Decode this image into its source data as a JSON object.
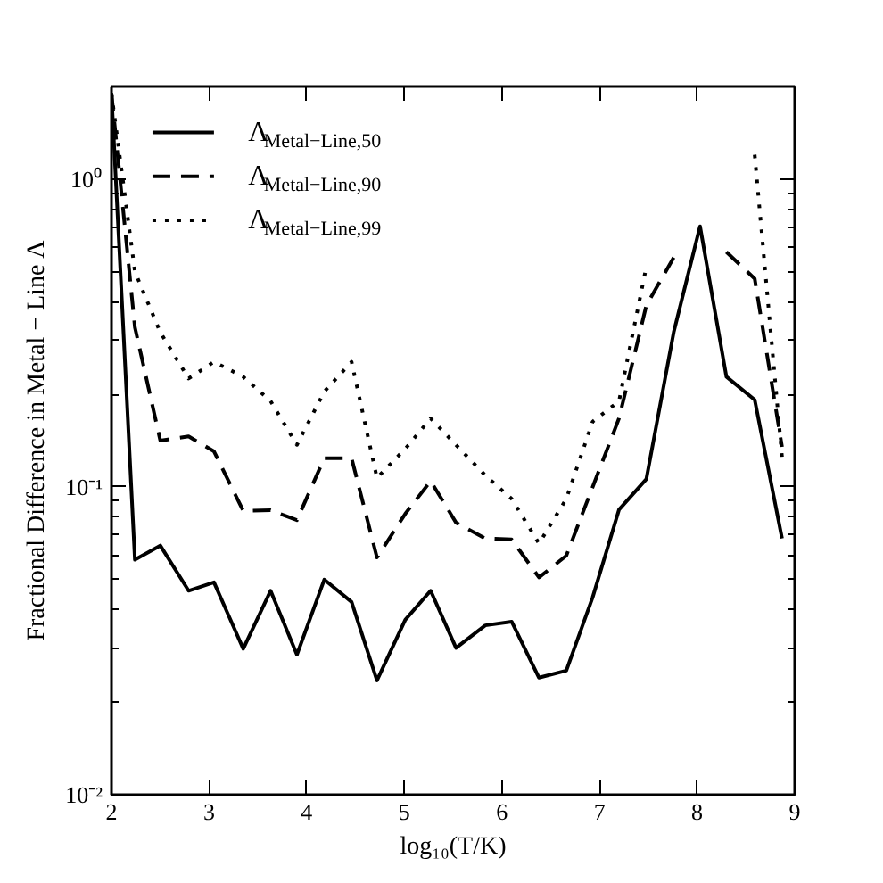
{
  "chart_data": {
    "type": "line",
    "xlabel": "log₁₀(T/K)",
    "ylabel": "Fractional Difference in Metal − Line Λ",
    "log": "y",
    "xlim": [
      2,
      9
    ],
    "xticks": [
      2,
      3,
      4,
      5,
      6,
      7,
      8,
      9
    ],
    "ylim": [
      0.01,
      2
    ],
    "yticks": [
      {
        "value": 0.01,
        "label": "10⁻²"
      },
      {
        "value": 0.1,
        "label": "10⁻¹"
      },
      {
        "value": 1,
        "label": "10⁰"
      }
    ],
    "grid": false,
    "legend": "top left",
    "x": [
      2.0,
      2.24,
      2.5,
      2.79,
      3.05,
      3.35,
      3.63,
      3.9,
      4.18,
      4.46,
      4.72,
      5.01,
      5.27,
      5.53,
      5.83,
      6.1,
      6.38,
      6.66,
      6.93,
      7.2,
      7.48,
      7.76,
      8.03,
      8.3,
      8.59,
      8.87
    ],
    "series": [
      {
        "name": "Λ$_{Metal−Line,50}$",
        "color": "#000000",
        "line_style": "solid",
        "values": [
          1.9,
          0.058,
          0.0645,
          0.046,
          0.049,
          0.0298,
          0.046,
          0.0285,
          0.05,
          0.0423,
          0.0235,
          0.037,
          0.046,
          0.03,
          0.0355,
          0.0365,
          0.024,
          0.0253,
          0.0438,
          0.0844,
          0.106,
          0.318,
          0.703,
          0.228,
          0.192,
          0.068
        ]
      },
      {
        "name": "Λ$_{Metal−Line,90}$",
        "color": "#000000",
        "line_style": "dashed",
        "values": [
          1.9,
          0.33,
          0.1415,
          0.146,
          0.1305,
          0.0836,
          0.084,
          0.078,
          0.124,
          0.124,
          0.059,
          0.0818,
          0.1045,
          0.0766,
          0.068,
          0.0675,
          0.0508,
          0.0598,
          0.1,
          0.167,
          0.389,
          0.556,
          null,
          0.58,
          0.475,
          0.135
        ]
      },
      {
        "name": "Λ$_{Metal−Line,99}$",
        "color": "#000000",
        "line_style": "dotted",
        "values": [
          1.9,
          0.5,
          0.318,
          0.225,
          0.255,
          0.228,
          0.19,
          0.137,
          0.204,
          0.255,
          0.107,
          0.133,
          0.167,
          0.137,
          0.109,
          0.0915,
          0.0655,
          0.0915,
          0.163,
          0.19,
          0.52,
          null,
          null,
          null,
          1.2,
          0.125
        ]
      }
    ]
  }
}
